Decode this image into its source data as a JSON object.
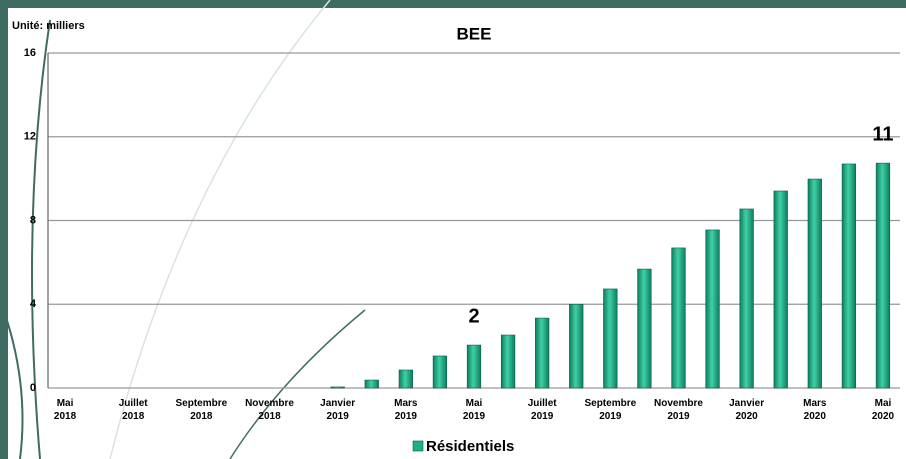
{
  "chart_data": {
    "type": "bar",
    "title": "BEE",
    "y_label": "Unité: milliers",
    "categories": [
      "Mai 2018",
      null,
      "Juillet 2018",
      null,
      "Septembre 2018",
      null,
      "Novembre 2018",
      null,
      "Janvier 2019",
      null,
      "Mars 2019",
      null,
      "Mai 2019",
      null,
      "Juillet 2019",
      null,
      "Septembre 2019",
      null,
      "Novembre 2019",
      null,
      "Janvier 2020",
      null,
      "Mars 2020",
      null,
      "Mai 2020"
    ],
    "series": [
      {
        "name": "Résidentiels",
        "color": "#1fae86",
        "values": [
          0,
          0,
          0,
          0,
          0,
          0,
          0,
          0,
          0.05,
          0.38,
          0.86,
          1.53,
          2.05,
          2.53,
          3.34,
          4.0,
          4.73,
          5.68,
          6.69,
          7.55,
          8.55,
          9.41,
          9.98,
          10.7,
          10.74
        ],
        "value_labels": [
          null,
          null,
          null,
          null,
          null,
          null,
          null,
          null,
          null,
          null,
          null,
          null,
          "2",
          null,
          null,
          null,
          null,
          null,
          null,
          null,
          null,
          null,
          null,
          null,
          "11"
        ]
      }
    ],
    "ylim": [
      0,
      16
    ],
    "yticks": [
      0,
      4,
      8,
      12,
      16
    ],
    "grid": true
  }
}
